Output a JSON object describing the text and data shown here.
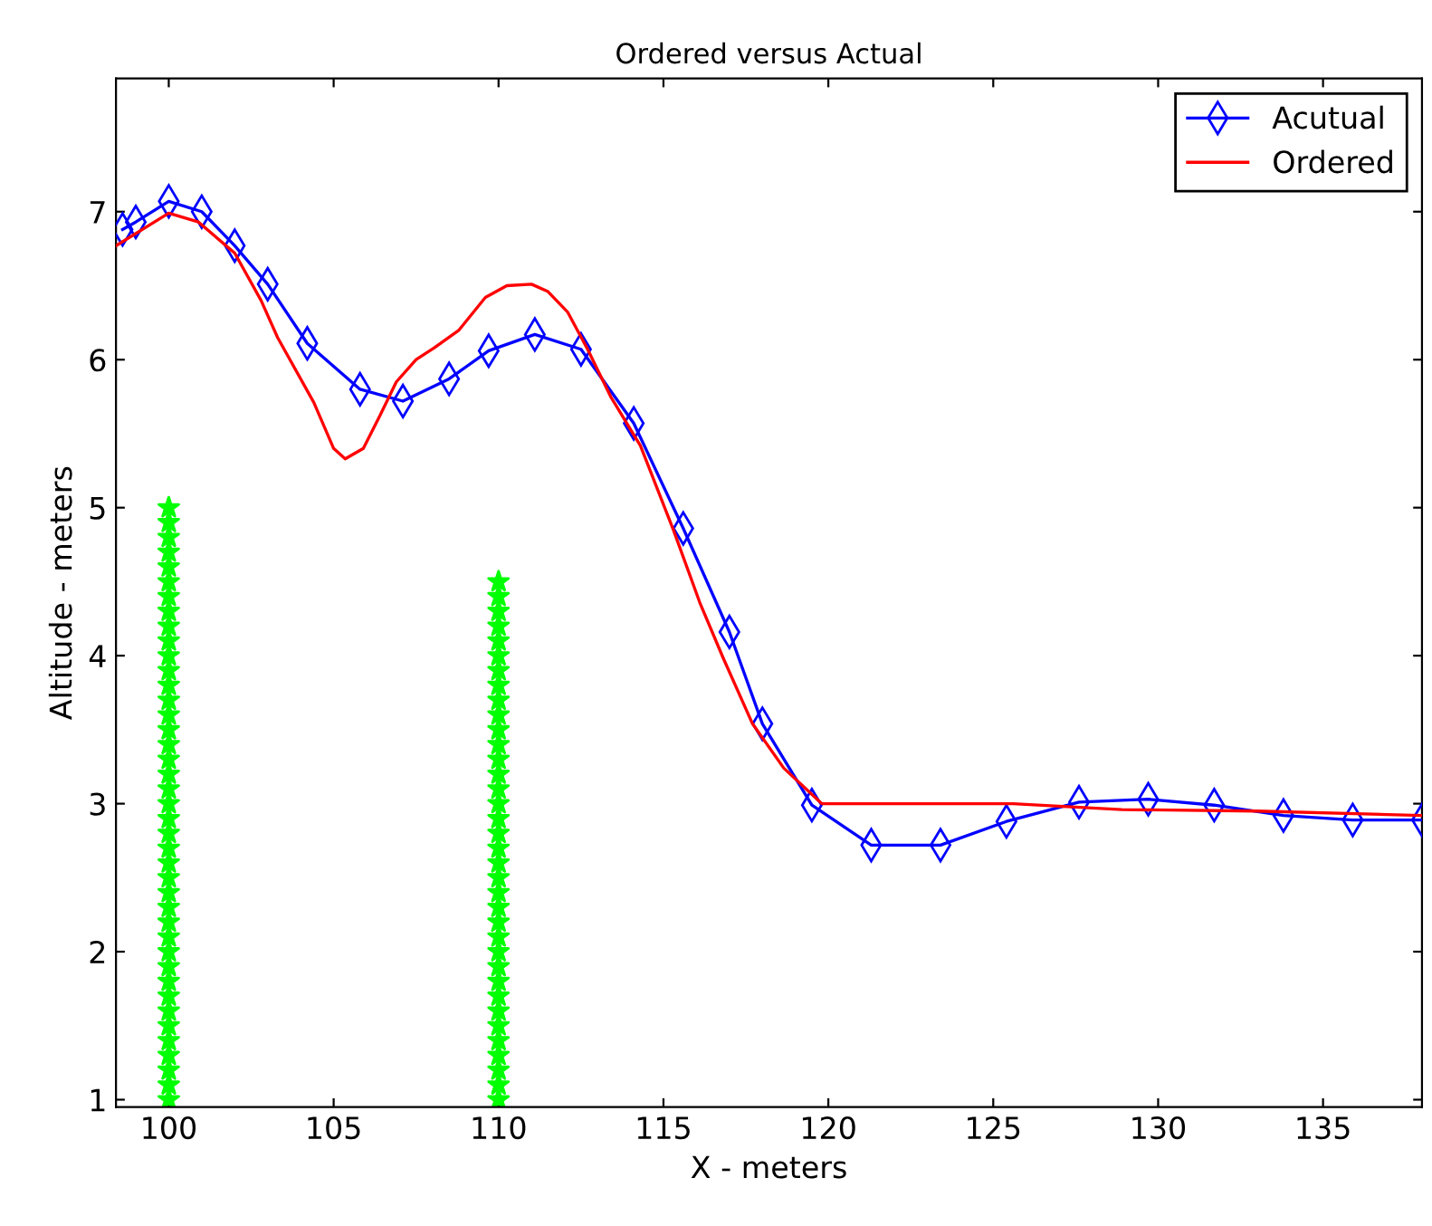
{
  "chart_data": {
    "type": "line",
    "title": "Ordered versus Actual",
    "xlabel": "X - meters",
    "ylabel": "Altitude - meters",
    "xlim": [
      98.4,
      138
    ],
    "ylim": [
      0.95,
      7.9
    ],
    "xticks": [
      100,
      105,
      110,
      115,
      120,
      125,
      130,
      135
    ],
    "yticks": [
      1,
      2,
      3,
      4,
      5,
      6,
      7
    ],
    "grid": false,
    "legend": "top right",
    "series": [
      {
        "name": "Acutual",
        "color": "#0000ff",
        "marker": "diamond",
        "line_style": "solid",
        "x": [
          98.6,
          99.0,
          100.0,
          101.0,
          102.0,
          103.0,
          104.2,
          105.8,
          107.1,
          108.5,
          109.7,
          111.1,
          112.5,
          114.1,
          115.6,
          117.0,
          118.0,
          119.5,
          121.3,
          123.4,
          125.4,
          127.6,
          129.7,
          131.7,
          133.8,
          135.9,
          138
        ],
        "values": [
          6.88,
          6.93,
          7.07,
          7.0,
          6.77,
          6.51,
          6.11,
          5.8,
          5.72,
          5.87,
          6.06,
          6.17,
          6.07,
          5.57,
          4.86,
          4.16,
          3.54,
          2.99,
          2.72,
          2.72,
          2.88,
          3.01,
          3.03,
          2.99,
          2.92,
          2.89,
          2.89
        ]
      },
      {
        "name": "Ordered",
        "color": "#ff0000",
        "marker": "none",
        "line_style": "solid",
        "x": [
          98.4,
          100.0,
          100.9,
          102.0,
          102.8,
          103.3,
          104.4,
          105.0,
          105.35,
          105.9,
          106.4,
          106.9,
          107.5,
          108.05,
          108.8,
          109.6,
          110.25,
          111.0,
          111.5,
          112.1,
          112.7,
          113.4,
          114.3,
          115.3,
          116.1,
          116.8,
          117.7,
          118.65,
          119.8,
          125.6,
          128.9,
          133.0,
          138
        ],
        "values": [
          6.77,
          6.99,
          6.93,
          6.72,
          6.4,
          6.15,
          5.71,
          5.4,
          5.33,
          5.4,
          5.62,
          5.85,
          6.0,
          6.08,
          6.2,
          6.42,
          6.5,
          6.51,
          6.46,
          6.32,
          6.07,
          5.75,
          5.42,
          4.85,
          4.36,
          3.99,
          3.54,
          3.24,
          3.0,
          3.0,
          2.96,
          2.95,
          2.92
        ]
      },
      {
        "type": "scatter",
        "color": "#00ff00",
        "marker": "star",
        "x": [
          100,
          100,
          100,
          100,
          100,
          100,
          100,
          100,
          100,
          100,
          100,
          100,
          100,
          100,
          100,
          100,
          100,
          100,
          100,
          100,
          100,
          100,
          100,
          100,
          100,
          100,
          100,
          100,
          100,
          100,
          100,
          100,
          100,
          100,
          100,
          100,
          100,
          100,
          100,
          100,
          100
        ],
        "values": [
          1.0,
          1.1,
          1.2,
          1.3,
          1.4,
          1.5,
          1.6,
          1.7,
          1.8,
          1.9,
          2.0,
          2.1,
          2.2,
          2.3,
          2.4,
          2.5,
          2.6,
          2.7,
          2.8,
          2.9,
          3.0,
          3.1,
          3.2,
          3.3,
          3.4,
          3.5,
          3.6,
          3.7,
          3.8,
          3.9,
          4.0,
          4.1,
          4.2,
          4.3,
          4.4,
          4.5,
          4.6,
          4.7,
          4.8,
          4.9,
          5.0
        ]
      },
      {
        "type": "scatter",
        "color": "#00ff00",
        "marker": "star",
        "x": [
          110,
          110,
          110,
          110,
          110,
          110,
          110,
          110,
          110,
          110,
          110,
          110,
          110,
          110,
          110,
          110,
          110,
          110,
          110,
          110,
          110,
          110,
          110,
          110,
          110,
          110,
          110,
          110,
          110,
          110,
          110,
          110,
          110,
          110,
          110,
          110
        ],
        "values": [
          1.0,
          1.1,
          1.2,
          1.3,
          1.4,
          1.5,
          1.6,
          1.7,
          1.8,
          1.9,
          2.0,
          2.1,
          2.2,
          2.3,
          2.4,
          2.5,
          2.6,
          2.7,
          2.8,
          2.9,
          3.0,
          3.1,
          3.2,
          3.3,
          3.4,
          3.5,
          3.6,
          3.7,
          3.8,
          3.9,
          4.0,
          4.1,
          4.2,
          4.3,
          4.4,
          4.5
        ]
      }
    ]
  }
}
